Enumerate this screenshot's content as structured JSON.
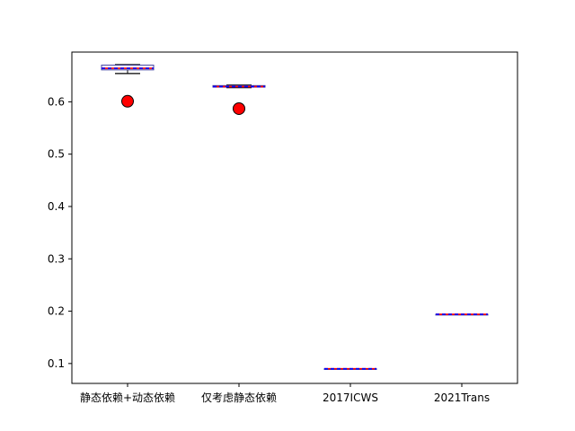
{
  "chart_data": {
    "type": "box",
    "categories": [
      "静态依赖+动态依赖",
      "仅考虑静态依赖",
      "2017ICWS",
      "2021Trans"
    ],
    "ylim": [
      0.062,
      0.695
    ],
    "yticks": [
      "0.1",
      "0.2",
      "0.3",
      "0.4",
      "0.5",
      "0.6"
    ],
    "grid": false,
    "boxes": [
      {
        "whislo": 0.654,
        "q1": 0.661,
        "med": 0.664,
        "mean": 0.664,
        "q3": 0.67,
        "whishi": 0.671,
        "point": 0.601
      },
      {
        "whislo": 0.627,
        "q1": 0.628,
        "med": 0.629,
        "mean": 0.629,
        "q3": 0.631,
        "whishi": 0.632,
        "point": 0.587
      },
      {
        "whislo": 0.09,
        "q1": 0.09,
        "med": 0.09,
        "mean": 0.09,
        "q3": 0.09,
        "whishi": 0.09,
        "point": null
      },
      {
        "whislo": 0.194,
        "q1": 0.194,
        "med": 0.194,
        "mean": 0.194,
        "q3": 0.194,
        "whishi": 0.194,
        "point": null
      }
    ],
    "colors": {
      "box": "#4040a0",
      "median": "#ff0000",
      "mean": "#0000ff",
      "point_fill": "#ff0000",
      "point_edge": "#000000"
    }
  }
}
